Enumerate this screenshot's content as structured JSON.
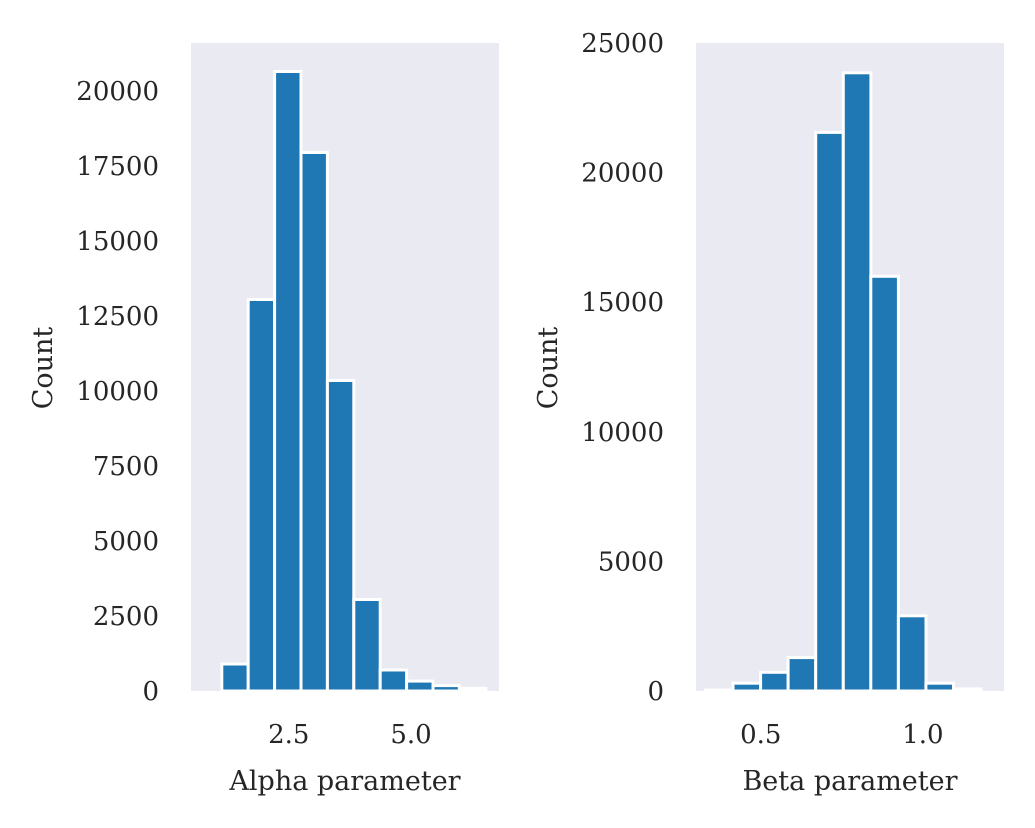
{
  "colors": {
    "bar": "#1f77b4",
    "plot_background": "#eaeaf2",
    "bar_edge": "#ffffff",
    "text": "#262626"
  },
  "chart_data": [
    {
      "type": "bar",
      "title": "",
      "xlabel": "Alpha parameter",
      "ylabel": "Count",
      "xlim": [
        0.5,
        6.8
      ],
      "ylim": [
        0,
        21600
      ],
      "grid": false,
      "bin_width": 0.54,
      "bins_x": [
        1.4,
        1.94,
        2.48,
        3.02,
        3.56,
        4.1,
        4.64,
        5.18,
        5.72,
        6.26
      ],
      "values": [
        900,
        13050,
        20650,
        17950,
        10350,
        3050,
        700,
        330,
        180,
        90
      ],
      "x_ticks": [
        2.5,
        5.0
      ],
      "x_tick_labels": [
        "2.5",
        "5.0"
      ],
      "y_ticks": [
        0,
        2500,
        5000,
        7500,
        10000,
        12500,
        15000,
        17500,
        20000
      ],
      "y_tick_labels": [
        "0",
        "2500",
        "5000",
        "7500",
        "10000",
        "12500",
        "15000",
        "17500",
        "20000"
      ]
    },
    {
      "type": "bar",
      "title": "",
      "xlabel": "Beta parameter",
      "ylabel": "Count",
      "xlim": [
        0.3,
        1.25
      ],
      "ylim": [
        0,
        25000
      ],
      "grid": false,
      "bin_width": 0.085,
      "bins_x": [
        0.3717,
        0.4567,
        0.5417,
        0.6267,
        0.7117,
        0.7967,
        0.8817,
        0.9667,
        1.0517,
        1.1367
      ],
      "values": [
        40,
        300,
        720,
        1290,
        21550,
        23850,
        16000,
        2900,
        300,
        80
      ],
      "x_ticks": [
        0.5,
        1.0
      ],
      "x_tick_labels": [
        "0.5",
        "1.0"
      ],
      "y_ticks": [
        0,
        5000,
        10000,
        15000,
        20000,
        25000
      ],
      "y_tick_labels": [
        "0",
        "5000",
        "10000",
        "15000",
        "20000",
        "25000"
      ]
    }
  ]
}
